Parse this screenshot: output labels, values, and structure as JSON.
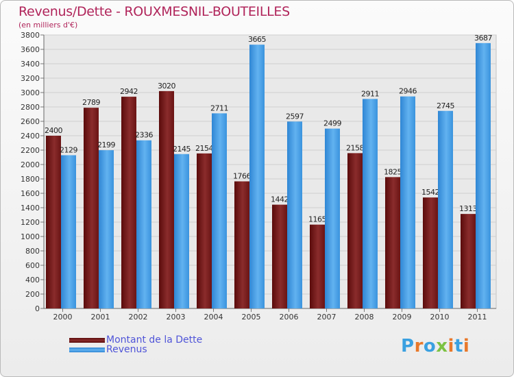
{
  "header": {
    "title": "Revenus/Dette - ROUXMESNIL-BOUTEILLES",
    "subtitle": "(en milliers d'€)"
  },
  "chart_data": {
    "type": "bar",
    "categories": [
      "2000",
      "2001",
      "2002",
      "2003",
      "2004",
      "2005",
      "2006",
      "2007",
      "2008",
      "2009",
      "2010",
      "2011"
    ],
    "series": [
      {
        "name": "Montant de la Dette",
        "color": "#7a1d1d",
        "values": [
          2400,
          2789,
          2942,
          3020,
          2154,
          1766,
          1442,
          1165,
          2158,
          1825,
          1542,
          1313
        ]
      },
      {
        "name": "Revenus",
        "color": "#3d97e0",
        "values": [
          2129,
          2199,
          2336,
          2145,
          2711,
          3665,
          2597,
          2499,
          2911,
          2946,
          2745,
          3687
        ]
      }
    ],
    "ylim": [
      0,
      3800
    ],
    "ytick_step": 200,
    "grid": true,
    "legend": "bottom-left"
  },
  "logo": {
    "letters": [
      "P",
      "r",
      "o",
      "x",
      "i",
      "t",
      "i"
    ],
    "colors": [
      "#3aa0e0",
      "#e8782a",
      "#3aa0e0",
      "#7cc242",
      "#e8782a",
      "#3aa0e0",
      "#e8782a"
    ]
  }
}
